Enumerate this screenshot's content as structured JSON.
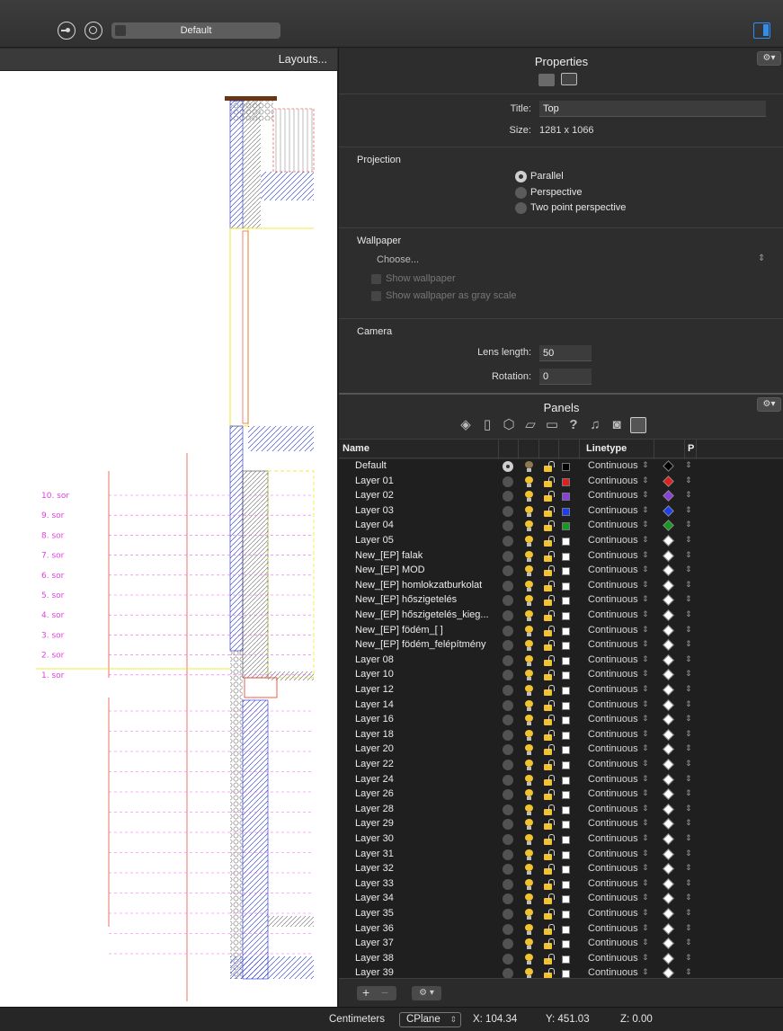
{
  "toolbar": {
    "icons": [
      "drop-view-icon",
      "target-circle-icon",
      "panel-toggle-icon"
    ],
    "layout_dropdown": "Default"
  },
  "viewport": {
    "layouts_link": "Layouts...",
    "row_labels": [
      "10. sor",
      "9. sor",
      "8. sor",
      "7. sor",
      "6. sor",
      "5. sor",
      "4. sor",
      "3. sor",
      "2. sor",
      "1. sor"
    ],
    "label_color": "#e040e0"
  },
  "properties": {
    "title": "Properties",
    "title_label": "Title:",
    "title_value": "Top",
    "size_label": "Size:",
    "size_value": "1281 x 1066",
    "projection": {
      "label": "Projection",
      "options": [
        "Parallel",
        "Perspective",
        "Two point perspective"
      ],
      "selected": "Parallel"
    },
    "wallpaper": {
      "label": "Wallpaper",
      "choose": "Choose...",
      "show_wallpaper": "Show wallpaper",
      "show_gray": "Show wallpaper as gray scale"
    },
    "camera": {
      "label": "Camera",
      "lens_label": "Lens length:",
      "lens_value": "50",
      "rotation_label": "Rotation:",
      "rotation_value": "0"
    }
  },
  "panels": {
    "title": "Panels",
    "columns": {
      "name": "Name",
      "linetype": "Linetype",
      "print": "P"
    },
    "layers": [
      {
        "name": "Default",
        "color": "#000000",
        "linetype": "Continuous",
        "current": true
      },
      {
        "name": "Layer 01",
        "color": "#e0201c",
        "linetype": "Continuous"
      },
      {
        "name": "Layer 02",
        "color": "#8a3ee0",
        "linetype": "Continuous"
      },
      {
        "name": "Layer 03",
        "color": "#1f3ef0",
        "linetype": "Continuous"
      },
      {
        "name": "Layer 04",
        "color": "#149a22",
        "linetype": "Continuous"
      },
      {
        "name": "Layer 05",
        "color": "#ffffff",
        "linetype": "Continuous"
      },
      {
        "name": "New_[EP] falak",
        "color": "#ffffff",
        "linetype": "Continuous"
      },
      {
        "name": "New_[EP] MOD",
        "color": "#ffffff",
        "linetype": "Continuous"
      },
      {
        "name": "New_[EP] homlokzatburkolat",
        "color": "#ffffff",
        "linetype": "Continuous"
      },
      {
        "name": "New_[EP] hőszigetelés",
        "color": "#ffffff",
        "linetype": "Continuous"
      },
      {
        "name": "New_[EP] hőszigetelés_kieg...",
        "color": "#ffffff",
        "linetype": "Continuous"
      },
      {
        "name": "New_[EP] födém_[ ]",
        "color": "#ffffff",
        "linetype": "Continuous"
      },
      {
        "name": "New_[EP] födém_felépítmény",
        "color": "#ffffff",
        "linetype": "Continuous"
      },
      {
        "name": "Layer 08",
        "color": "#ffffff",
        "linetype": "Continuous"
      },
      {
        "name": "Layer 10",
        "color": "#ffffff",
        "linetype": "Continuous"
      },
      {
        "name": "Layer 12",
        "color": "#ffffff",
        "linetype": "Continuous"
      },
      {
        "name": "Layer 14",
        "color": "#ffffff",
        "linetype": "Continuous"
      },
      {
        "name": "Layer 16",
        "color": "#ffffff",
        "linetype": "Continuous"
      },
      {
        "name": "Layer 18",
        "color": "#ffffff",
        "linetype": "Continuous"
      },
      {
        "name": "Layer 20",
        "color": "#ffffff",
        "linetype": "Continuous"
      },
      {
        "name": "Layer 22",
        "color": "#ffffff",
        "linetype": "Continuous"
      },
      {
        "name": "Layer 24",
        "color": "#ffffff",
        "linetype": "Continuous"
      },
      {
        "name": "Layer 26",
        "color": "#ffffff",
        "linetype": "Continuous"
      },
      {
        "name": "Layer 28",
        "color": "#ffffff",
        "linetype": "Continuous"
      },
      {
        "name": "Layer 29",
        "color": "#ffffff",
        "linetype": "Continuous"
      },
      {
        "name": "Layer 30",
        "color": "#ffffff",
        "linetype": "Continuous"
      },
      {
        "name": "Layer 31",
        "color": "#ffffff",
        "linetype": "Continuous"
      },
      {
        "name": "Layer 32",
        "color": "#ffffff",
        "linetype": "Continuous"
      },
      {
        "name": "Layer 33",
        "color": "#ffffff",
        "linetype": "Continuous"
      },
      {
        "name": "Layer 34",
        "color": "#ffffff",
        "linetype": "Continuous"
      },
      {
        "name": "Layer 35",
        "color": "#ffffff",
        "linetype": "Continuous"
      },
      {
        "name": "Layer 36",
        "color": "#ffffff",
        "linetype": "Continuous"
      },
      {
        "name": "Layer 37",
        "color": "#ffffff",
        "linetype": "Continuous"
      },
      {
        "name": "Layer 38",
        "color": "#ffffff",
        "linetype": "Continuous"
      },
      {
        "name": "Layer 39",
        "color": "#ffffff",
        "linetype": "Continuous"
      }
    ]
  },
  "status": {
    "units": "Centimeters",
    "cplane": "CPlane",
    "x": "X: 104.34",
    "y": "Y: 451.03",
    "z": "Z: 0.00"
  }
}
